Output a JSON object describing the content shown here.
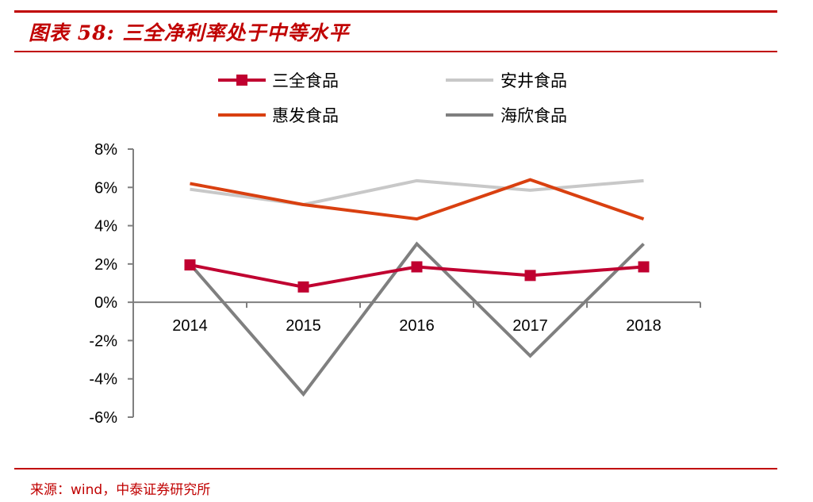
{
  "header": {
    "title": "图表 58:  三全净利率处于中等水平"
  },
  "footer": {
    "source": "来源：wind，中泰证券研究所"
  },
  "chart_data": {
    "type": "line",
    "categories": [
      "2014",
      "2015",
      "2016",
      "2017",
      "2018"
    ],
    "series": [
      {
        "name": "三全食品",
        "values": [
          1.95,
          0.8,
          1.85,
          1.4,
          1.85
        ],
        "color": "#c00030",
        "marker": "square"
      },
      {
        "name": "安井食品",
        "values": [
          5.9,
          5.1,
          6.35,
          5.85,
          6.35
        ],
        "color": "#c8c8c8",
        "marker": "none"
      },
      {
        "name": "惠发食品",
        "values": [
          6.2,
          5.1,
          4.35,
          6.4,
          4.35
        ],
        "color": "#d94010",
        "marker": "none"
      },
      {
        "name": "海欣食品",
        "values": [
          2.0,
          -4.8,
          3.05,
          -2.8,
          3.05
        ],
        "color": "#7f7f7f",
        "marker": "none"
      }
    ],
    "ylim": [
      -6,
      8
    ],
    "yticks": [
      "8%",
      "6%",
      "4%",
      "2%",
      "0%",
      "-2%",
      "-4%",
      "-6%"
    ],
    "ytick_values": [
      8,
      6,
      4,
      2,
      0,
      -2,
      -4,
      -6
    ],
    "xlabel": "",
    "ylabel": "",
    "grid": false,
    "legend_position": "top"
  }
}
